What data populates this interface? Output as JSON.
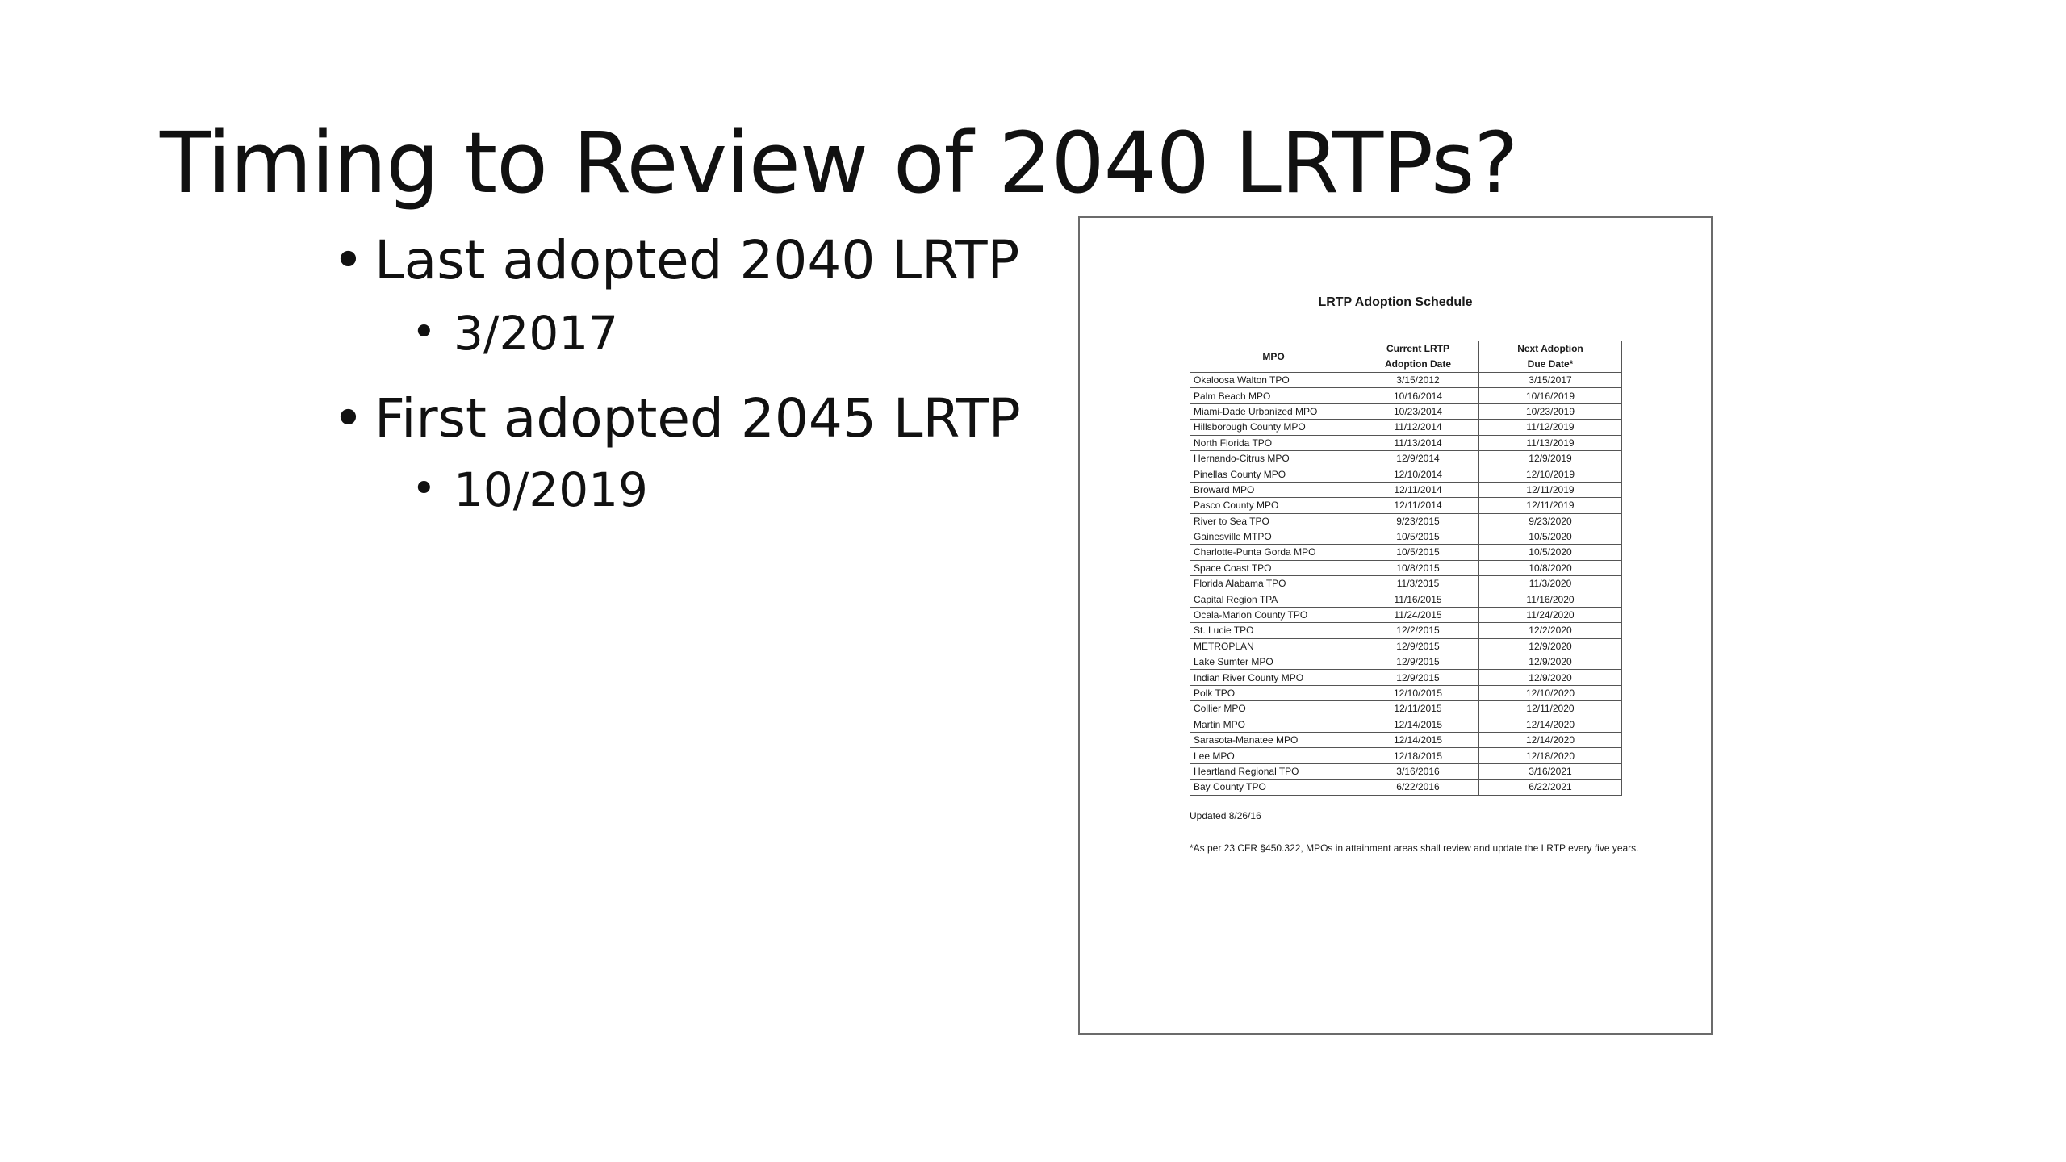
{
  "slide": {
    "title": "Timing to Review of 2040 LRTPs?",
    "bullets": [
      {
        "level": 1,
        "text": "Last adopted 2040 LRTP"
      },
      {
        "level": 2,
        "text": "3/2017"
      },
      {
        "level": 1,
        "text": "First adopted 2045 LRTP"
      },
      {
        "level": 2,
        "text": "10/2019"
      }
    ],
    "bullet_glyph": "•"
  },
  "document": {
    "title": "LRTP Adoption Schedule",
    "columns": [
      "MPO",
      "Current LRTP Adoption Date",
      "Next Adoption Due Date*"
    ],
    "rows": [
      [
        "Okaloosa Walton TPO",
        "3/15/2012",
        "3/15/2017"
      ],
      [
        "Palm Beach MPO",
        "10/16/2014",
        "10/16/2019"
      ],
      [
        "Miami-Dade Urbanized MPO",
        "10/23/2014",
        "10/23/2019"
      ],
      [
        "Hillsborough County MPO",
        "11/12/2014",
        "11/12/2019"
      ],
      [
        "North Florida TPO",
        "11/13/2014",
        "11/13/2019"
      ],
      [
        "Hernando-Citrus MPO",
        "12/9/2014",
        "12/9/2019"
      ],
      [
        "Pinellas County MPO",
        "12/10/2014",
        "12/10/2019"
      ],
      [
        "Broward MPO",
        "12/11/2014",
        "12/11/2019"
      ],
      [
        "Pasco County MPO",
        "12/11/2014",
        "12/11/2019"
      ],
      [
        "River to Sea TPO",
        "9/23/2015",
        "9/23/2020"
      ],
      [
        "Gainesville MTPO",
        "10/5/2015",
        "10/5/2020"
      ],
      [
        "Charlotte-Punta Gorda MPO",
        "10/5/2015",
        "10/5/2020"
      ],
      [
        "Space Coast TPO",
        "10/8/2015",
        "10/8/2020"
      ],
      [
        "Florida Alabama TPO",
        "11/3/2015",
        "11/3/2020"
      ],
      [
        "Capital Region TPA",
        "11/16/2015",
        "11/16/2020"
      ],
      [
        "Ocala-Marion County TPO",
        "11/24/2015",
        "11/24/2020"
      ],
      [
        "St. Lucie TPO",
        "12/2/2015",
        "12/2/2020"
      ],
      [
        "METROPLAN",
        "12/9/2015",
        "12/9/2020"
      ],
      [
        "Lake Sumter MPO",
        "12/9/2015",
        "12/9/2020"
      ],
      [
        "Indian River County MPO",
        "12/9/2015",
        "12/9/2020"
      ],
      [
        "Polk TPO",
        "12/10/2015",
        "12/10/2020"
      ],
      [
        "Collier MPO",
        "12/11/2015",
        "12/11/2020"
      ],
      [
        "Martin MPO",
        "12/14/2015",
        "12/14/2020"
      ],
      [
        "Sarasota-Manatee MPO",
        "12/14/2015",
        "12/14/2020"
      ],
      [
        "Lee MPO",
        "12/18/2015",
        "12/18/2020"
      ],
      [
        "Heartland Regional TPO",
        "3/16/2016",
        "3/16/2021"
      ],
      [
        "Bay County TPO",
        "6/22/2016",
        "6/22/2021"
      ]
    ],
    "updated": "Updated 8/26/16",
    "footnote": "*As per 23 CFR §450.322, MPOs in attainment areas shall review and update the LRTP every five years."
  }
}
